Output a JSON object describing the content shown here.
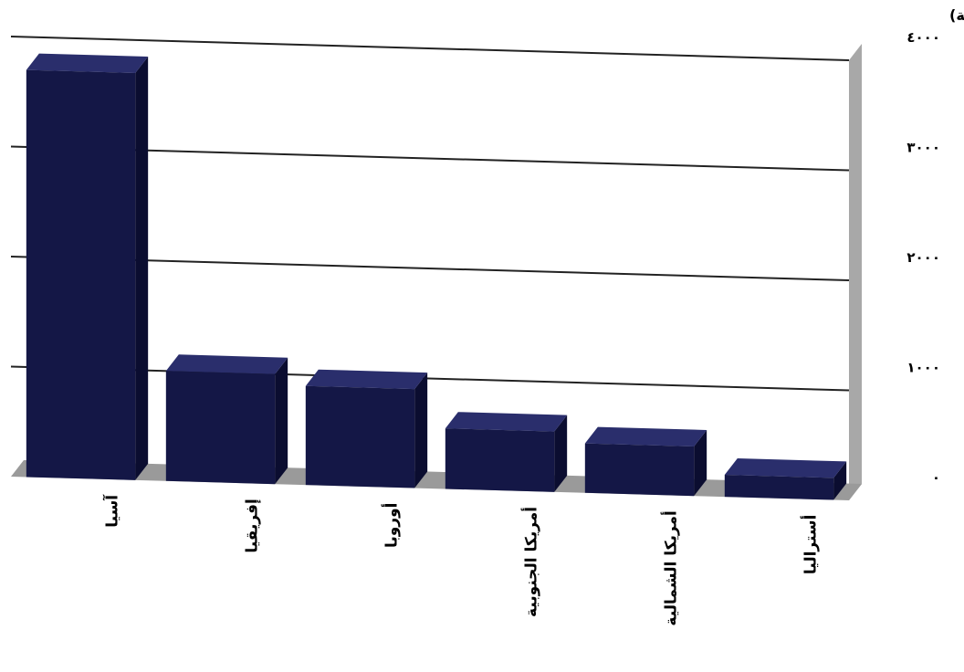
{
  "chart_data": {
    "type": "bar",
    "ylabel": "(مليون نسمة)",
    "ylim": [
      0,
      4000
    ],
    "y_ticks": [
      {
        "value": 0,
        "label": "٠"
      },
      {
        "value": 1000,
        "label": "١٠٠٠"
      },
      {
        "value": 2000,
        "label": "٢٠٠٠"
      },
      {
        "value": 3000,
        "label": "٣٠٠٠"
      },
      {
        "value": 4000,
        "label": "٤٠٠٠"
      }
    ],
    "categories": [
      "آسيا",
      "إفريقيا",
      "أوروبا",
      "أمريكا الجنوبية",
      "أمريكا الشمالية",
      "أستراليا"
    ],
    "values": [
      3700,
      1000,
      900,
      550,
      450,
      200
    ],
    "grid": true,
    "bar_style": "3d",
    "colors": {
      "bar_front": "#141746",
      "bar_top": "#2a2e6c",
      "bar_side": "#0b0d30",
      "floor": "#9a9a9a",
      "back_wall": "#ffffff",
      "right_wall": "#a8a8a8",
      "grid": "#222222"
    }
  }
}
